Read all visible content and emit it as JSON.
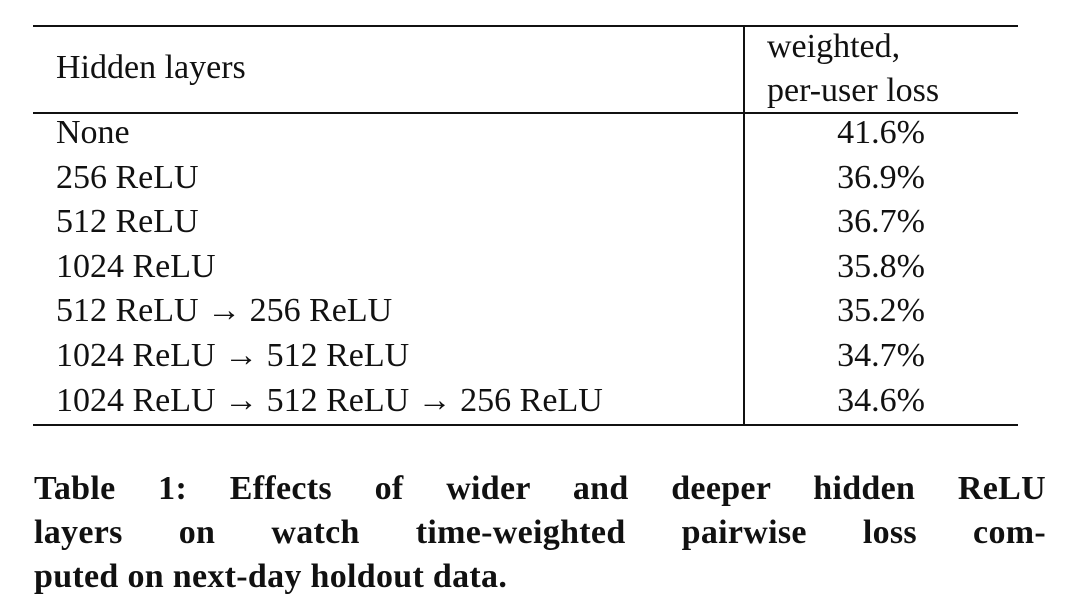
{
  "table": {
    "header": [
      "Hidden layers",
      [
        "weighted,",
        "per-user loss"
      ]
    ],
    "rows": [
      [
        "None",
        "41.6%"
      ],
      [
        "256 ReLU",
        "36.9%"
      ],
      [
        "512 ReLU",
        "36.7%"
      ],
      [
        "1024 ReLU",
        "35.8%"
      ],
      [
        "512 ReLU → 256 ReLU",
        "35.2%"
      ],
      [
        "1024 ReLU → 512 ReLU",
        "34.7%"
      ],
      [
        "1024 ReLU → 512 ReLU → 256 ReLU",
        "34.6%"
      ]
    ]
  },
  "caption": [
    "Table 1: Effects of wider and deeper hidden ReLU",
    "layers on watch time-weighted pairwise loss com-",
    "puted on next-day holdout data."
  ]
}
